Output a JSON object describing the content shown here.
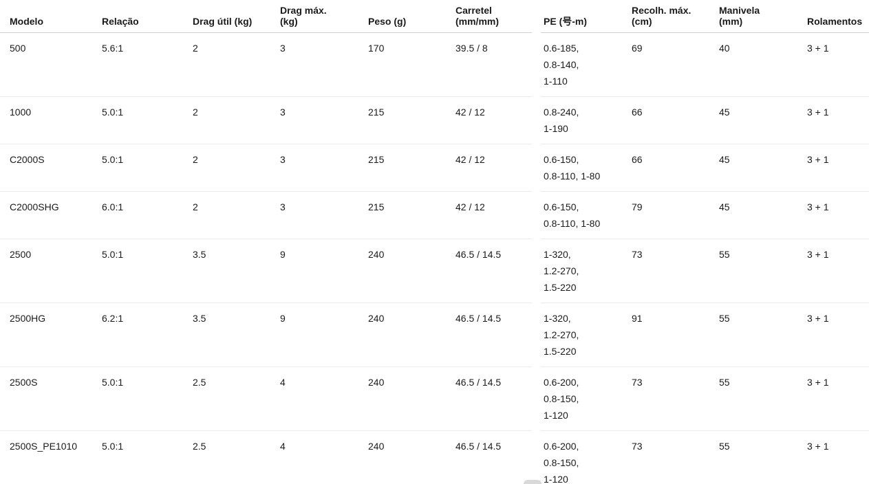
{
  "colors": {
    "background": "#ffffff",
    "text": "#1a1a1a",
    "header_rule": "#cfcfcf",
    "row_rule": "#ebebeb",
    "scrollbar_thumb": "#d9d9d9"
  },
  "table": {
    "columns": [
      {
        "id": "modelo",
        "lines": [
          "Modelo"
        ]
      },
      {
        "id": "relacao",
        "lines": [
          "Relação"
        ]
      },
      {
        "id": "drag-util",
        "lines": [
          "Drag útil (kg)"
        ]
      },
      {
        "id": "drag-max",
        "lines": [
          "Drag máx.",
          "(kg)"
        ]
      },
      {
        "id": "peso",
        "lines": [
          "Peso (g)"
        ]
      },
      {
        "id": "carretel",
        "lines": [
          "Carretel",
          "(mm/mm)"
        ]
      },
      {
        "id": "pe",
        "lines": [
          "PE (号-m)"
        ]
      },
      {
        "id": "recolh-max",
        "lines": [
          "Recolh. máx.",
          "(cm)"
        ]
      },
      {
        "id": "manivela",
        "lines": [
          "Manivela",
          "(mm)"
        ]
      },
      {
        "id": "rolamentos",
        "lines": [
          "Rolamentos"
        ]
      }
    ],
    "rows": [
      {
        "cells": [
          "500",
          "5.6:1",
          "2",
          "3",
          "170",
          "39.5 / 8",
          [
            "0.6-185,",
            "0.8-140,",
            "1-110"
          ],
          "69",
          "40",
          "3 + 1"
        ]
      },
      {
        "cells": [
          "1000",
          "5.0:1",
          "2",
          "3",
          "215",
          "42 / 12",
          [
            "0.8-240,",
            "1-190"
          ],
          "66",
          "45",
          "3 + 1"
        ]
      },
      {
        "cells": [
          "C2000S",
          "5.0:1",
          "2",
          "3",
          "215",
          "42 / 12",
          [
            "0.6-150,",
            "0.8-110, 1-80"
          ],
          "66",
          "45",
          "3 + 1"
        ]
      },
      {
        "cells": [
          "C2000SHG",
          "6.0:1",
          "2",
          "3",
          "215",
          "42 / 12",
          [
            "0.6-150,",
            "0.8-110, 1-80"
          ],
          "79",
          "45",
          "3 + 1"
        ]
      },
      {
        "cells": [
          "2500",
          "5.0:1",
          "3.5",
          "9",
          "240",
          "46.5 / 14.5",
          [
            "1-320,",
            "1.2-270,",
            "1.5-220"
          ],
          "73",
          "55",
          "3 + 1"
        ]
      },
      {
        "cells": [
          "2500HG",
          "6.2:1",
          "3.5",
          "9",
          "240",
          "46.5 / 14.5",
          [
            "1-320,",
            "1.2-270,",
            "1.5-220"
          ],
          "91",
          "55",
          "3 + 1"
        ]
      },
      {
        "cells": [
          "2500S",
          "5.0:1",
          "2.5",
          "4",
          "240",
          "46.5 / 14.5",
          [
            "0.6-200,",
            "0.8-150,",
            "1-120"
          ],
          "73",
          "55",
          "3 + 1"
        ]
      },
      {
        "cells": [
          "2500S_PE1010",
          "5.0:1",
          "2.5",
          "4",
          "240",
          "46.5 / 14.5",
          [
            "0.6-200,",
            "0.8-150,",
            "1-120"
          ],
          "73",
          "55",
          "3 + 1"
        ]
      }
    ]
  }
}
